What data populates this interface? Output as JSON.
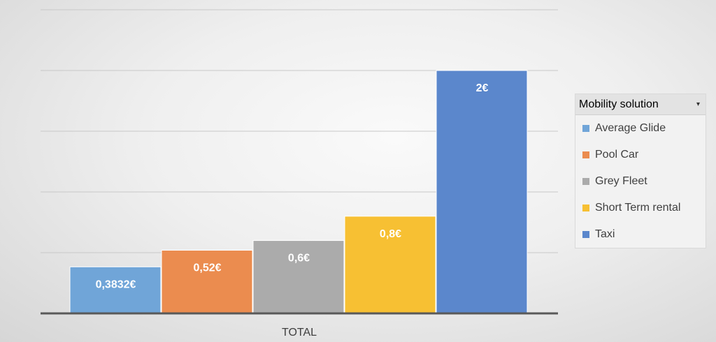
{
  "chart_data": {
    "type": "bar",
    "categories": [
      "TOTAL"
    ],
    "series": [
      {
        "name": "Average Glide",
        "value": 0.3832,
        "label": "0,3832€",
        "color": "#70A5D8"
      },
      {
        "name": "Pool Car",
        "value": 0.52,
        "label": "0,52€",
        "color": "#EB8C4F"
      },
      {
        "name": "Grey Fleet",
        "value": 0.6,
        "label": "0,6€",
        "color": "#ABABAB"
      },
      {
        "name": "Short Term rental",
        "value": 0.8,
        "label": "0,8€",
        "color": "#F7C033"
      },
      {
        "name": "Taxi",
        "value": 2,
        "label": "2€",
        "color": "#5B87CC"
      }
    ],
    "ylim": [
      0,
      2.5
    ],
    "grid": true,
    "legend_position": "right"
  },
  "legend": {
    "title": "Mobility solution",
    "dropdown_icon": "triangle-down-icon"
  }
}
